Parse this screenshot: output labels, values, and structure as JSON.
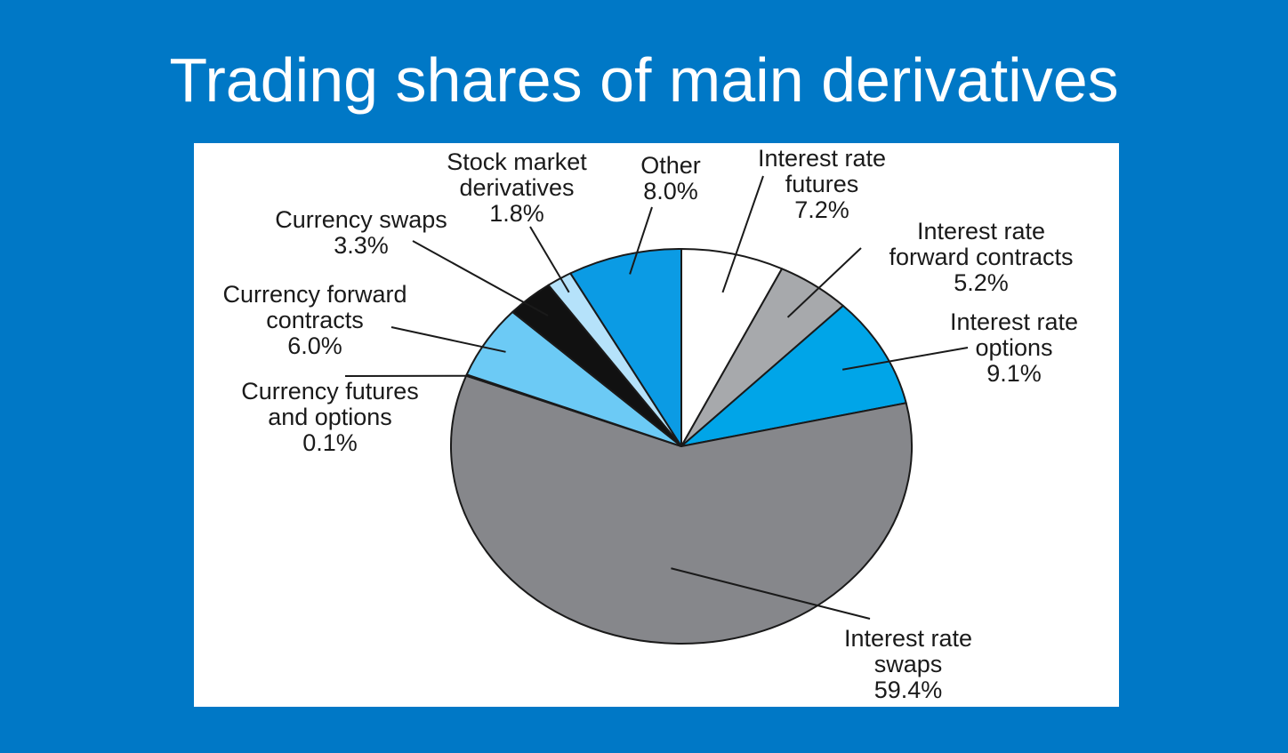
{
  "title": "Trading shares of main derivatives",
  "chart_data": {
    "type": "pie",
    "title": "",
    "unit": "%",
    "slices": [
      {
        "label_lines": [
          "Interest rate",
          "futures"
        ],
        "value": 7.2,
        "value_label": "7.2%",
        "color": "#ffffff"
      },
      {
        "label_lines": [
          "Interest rate",
          "forward contracts"
        ],
        "value": 5.2,
        "value_label": "5.2%",
        "color": "#a7a9ac"
      },
      {
        "label_lines": [
          "Interest rate",
          "options"
        ],
        "value": 9.1,
        "value_label": "9.1%",
        "color": "#00a5e8"
      },
      {
        "label_lines": [
          "Interest rate",
          "swaps"
        ],
        "value": 59.4,
        "value_label": "59.4%",
        "color": "#86878b"
      },
      {
        "label_lines": [
          "Currency futures",
          "and options"
        ],
        "value": 0.1,
        "value_label": "0.1%",
        "color": "#6a6a6a"
      },
      {
        "label_lines": [
          "Currency forward",
          "contracts"
        ],
        "value": 6.0,
        "value_label": "6.0%",
        "color": "#6ccaf5"
      },
      {
        "label_lines": [
          "Currency swaps"
        ],
        "value": 3.3,
        "value_label": "3.3%",
        "color": "#111111"
      },
      {
        "label_lines": [
          "Stock market",
          "derivatives"
        ],
        "value": 1.8,
        "value_label": "1.8%",
        "color": "#b5e2fa"
      },
      {
        "label_lines": [
          "Other"
        ],
        "value": 8.0,
        "value_label": "8.0%",
        "color": "#0b9be4"
      }
    ]
  }
}
